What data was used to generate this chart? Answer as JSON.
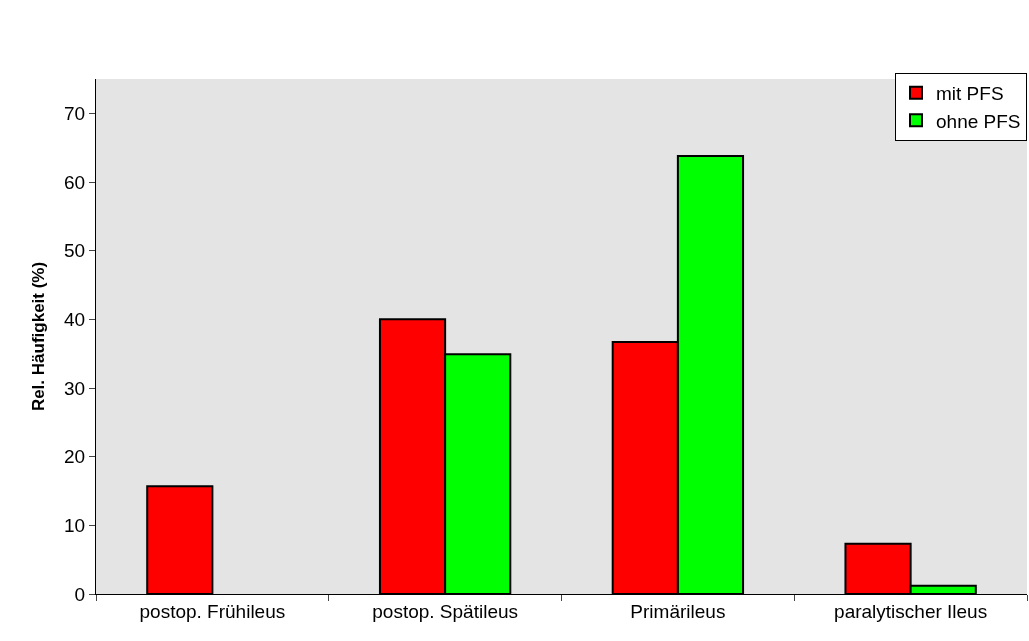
{
  "chart_data": {
    "type": "bar",
    "ylabel": "Rel. Häufigkeit (%)",
    "categories": [
      "postop. Frühileus",
      "postop. Spätileus",
      "Primärileus",
      "paralytischer Ileus"
    ],
    "series": [
      {
        "name": "mit PFS",
        "color": "#ff0000",
        "values": [
          15.7,
          40.0,
          36.7,
          7.3
        ]
      },
      {
        "name": "ohne PFS",
        "color": "#00ff00",
        "values": [
          null,
          34.9,
          63.8,
          1.2
        ]
      }
    ],
    "ylim": [
      0,
      75
    ],
    "yticks": [
      0,
      10,
      20,
      30,
      40,
      50,
      60,
      70
    ],
    "grid": false,
    "legend": "top right"
  }
}
